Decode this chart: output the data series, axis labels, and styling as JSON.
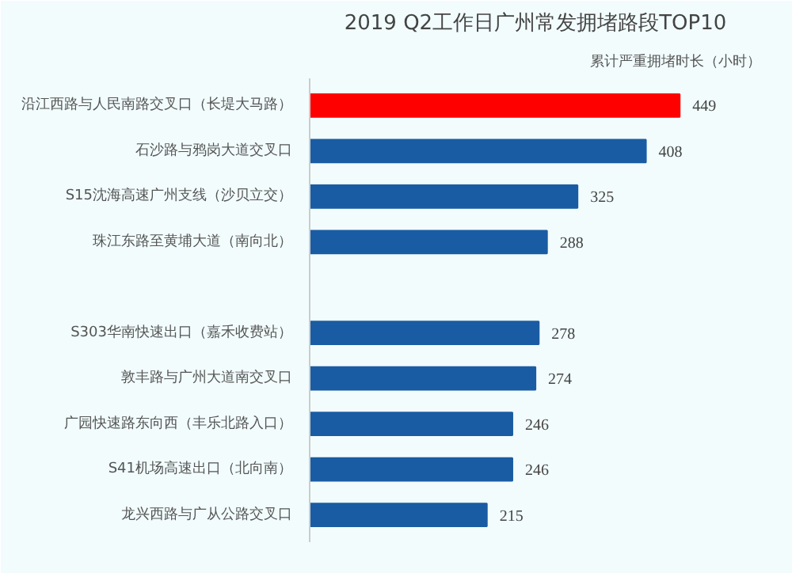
{
  "chart_data": {
    "type": "bar",
    "orientation": "horizontal",
    "title": "2019 Q2工作日广州常发拥堵路段TOP10",
    "xlabel": "累计严重拥堵时长（小时）",
    "categories": [
      "沿江西路与人民南路交叉口（长堤大马路）",
      "石沙路与鸦岗大道交叉口",
      "S15沈海高速广州支线（沙贝立交）",
      "珠江东路至黄埔大道（南向北）",
      null,
      "S303华南快速出口（嘉禾收费站）",
      "敦丰路与广州大道南交叉口",
      "广园快速路东向西（丰乐北路入口）",
      "S41机场高速出口（北向南）",
      "龙兴西路与广从公路交叉口"
    ],
    "values": [
      449,
      408,
      325,
      288,
      null,
      278,
      274,
      246,
      246,
      215
    ],
    "colors": [
      "#ff0000",
      "#1a5ca3",
      "#1a5ca3",
      "#1a5ca3",
      "#1a5ca3",
      "#1a5ca3",
      "#1a5ca3",
      "#1a5ca3",
      "#1a5ca3",
      "#1a5ca3"
    ],
    "data_labels": true,
    "grid": false
  }
}
